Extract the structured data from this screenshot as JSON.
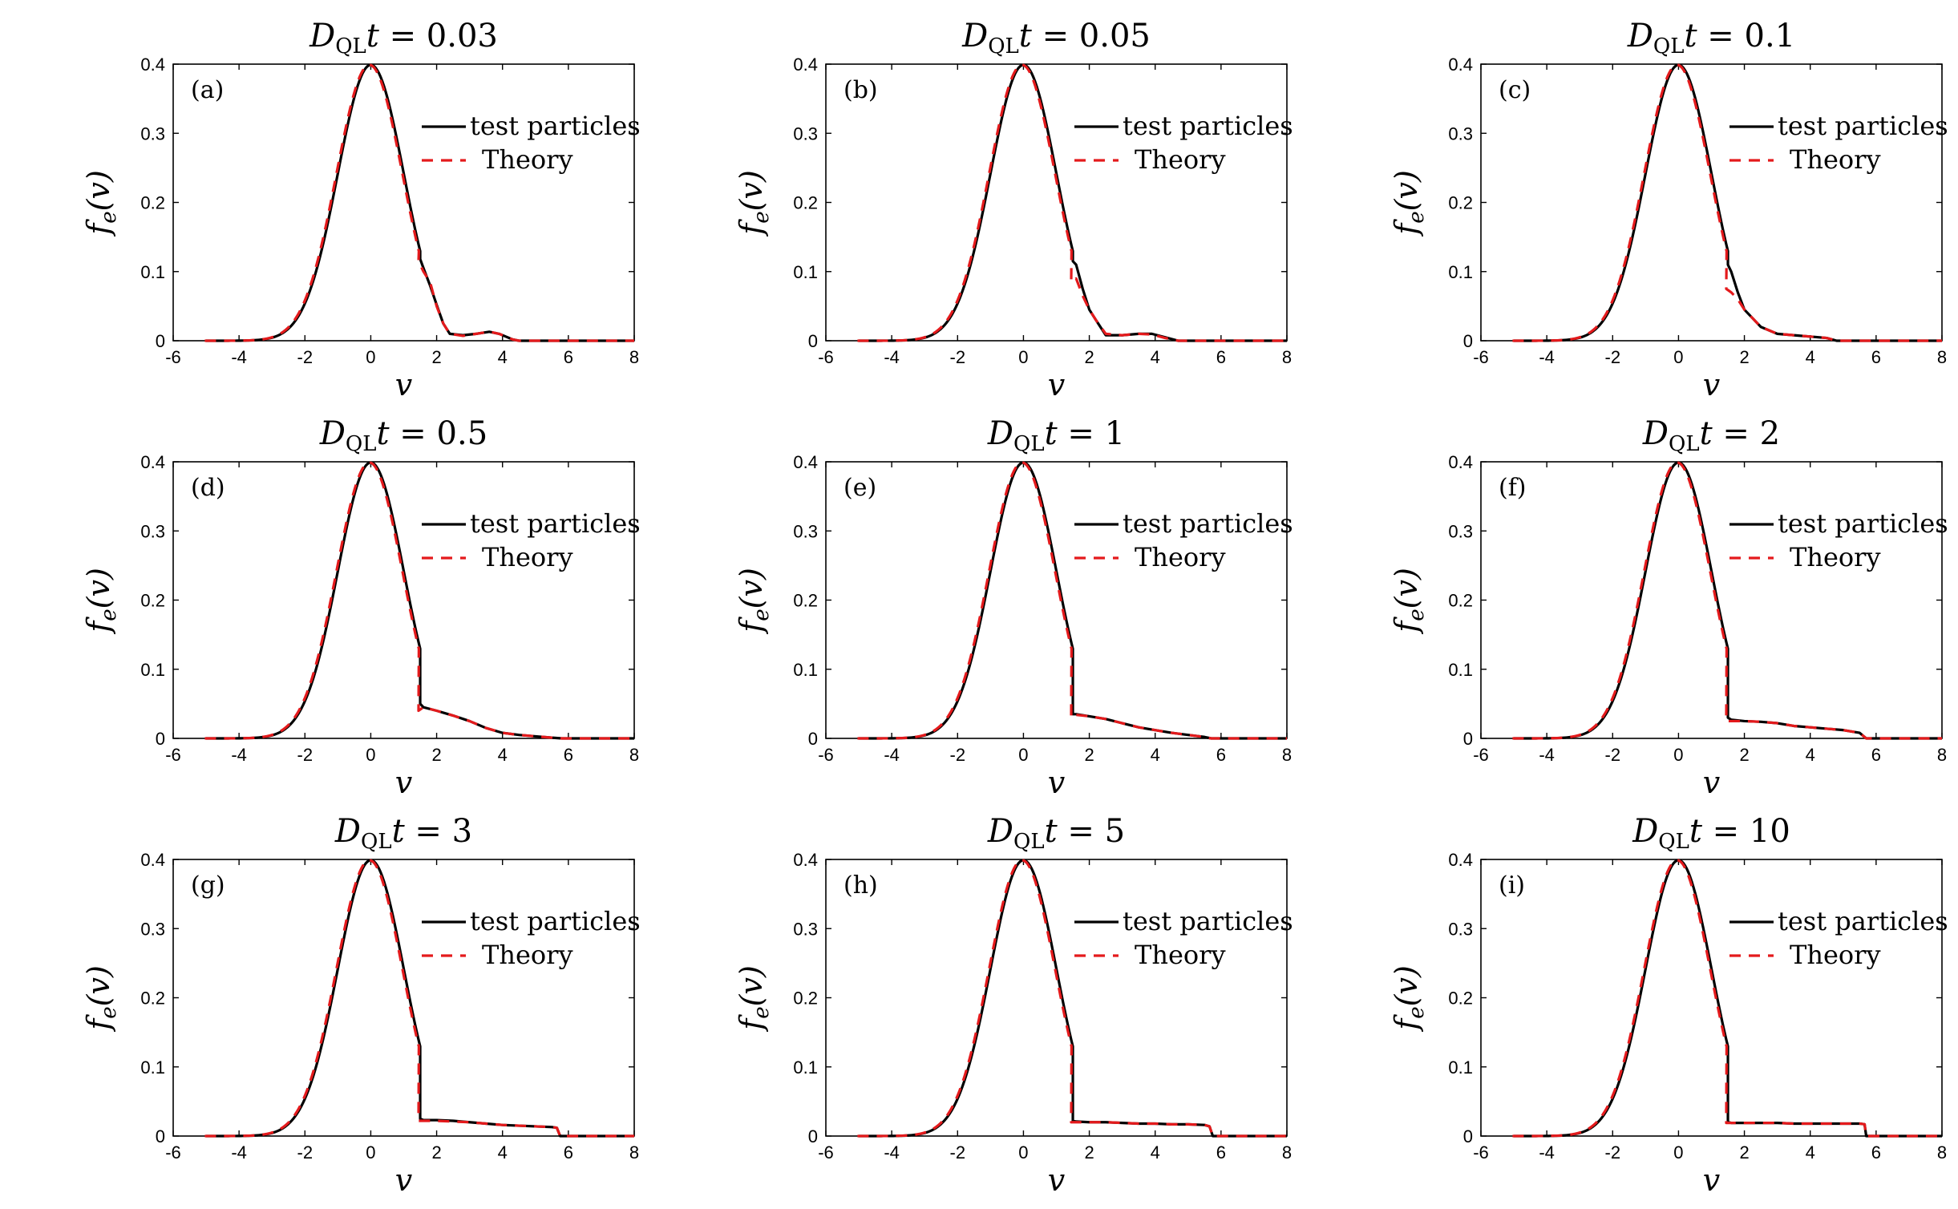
{
  "legend": {
    "test": "test particles",
    "theory": "Theory"
  },
  "colors": {
    "test": "#000000",
    "theory": "#e41a1c"
  },
  "xlabel": "v",
  "ylabel": {
    "base": "f",
    "sub": "e",
    "arg": "(v)"
  },
  "title_prefix": {
    "base": "D",
    "sub": "QL",
    "var": "t",
    "eq": " = "
  },
  "chart_data": [
    {
      "type": "line",
      "panel": "(a)",
      "time": "0.03",
      "xlim": [
        -6,
        8
      ],
      "ylim": [
        0,
        0.4
      ],
      "xticks": [
        -6,
        -4,
        -2,
        0,
        2,
        4,
        6,
        8
      ],
      "yticks": [
        0,
        0.1,
        0.2,
        0.3,
        0.4
      ],
      "legend_position": "upper-right",
      "series": [
        {
          "name": "test particles",
          "x": [
            1.5,
            1.6,
            1.8,
            2.0,
            2.2,
            2.4,
            2.8,
            3.2,
            3.6,
            3.9,
            4.1,
            4.3,
            4.5
          ],
          "y": [
            0.118,
            0.105,
            0.08,
            0.052,
            0.025,
            0.01,
            0.008,
            0.01,
            0.013,
            0.01,
            0.006,
            0.002,
            0.0
          ]
        },
        {
          "name": "Theory",
          "x": [
            1.45,
            1.6,
            1.8,
            2.0,
            2.2,
            2.4,
            2.8,
            3.2,
            3.6,
            3.9,
            4.1,
            4.3,
            4.5
          ],
          "y": [
            0.115,
            0.1,
            0.085,
            0.05,
            0.025,
            0.01,
            0.007,
            0.01,
            0.013,
            0.01,
            0.006,
            0.002,
            0.0
          ]
        }
      ]
    },
    {
      "type": "line",
      "panel": "(b)",
      "time": "0.05",
      "xlim": [
        -6,
        8
      ],
      "ylim": [
        0,
        0.4
      ],
      "xticks": [
        -6,
        -4,
        -2,
        0,
        2,
        4,
        6,
        8
      ],
      "yticks": [
        0,
        0.1,
        0.2,
        0.3,
        0.4
      ],
      "legend_position": "upper-right",
      "series": [
        {
          "name": "test particles",
          "x": [
            1.5,
            1.6,
            1.8,
            2.0,
            2.2,
            2.5,
            3.0,
            3.5,
            3.9,
            4.3,
            4.7
          ],
          "y": [
            0.115,
            0.11,
            0.075,
            0.045,
            0.03,
            0.008,
            0.008,
            0.01,
            0.01,
            0.005,
            0.0
          ]
        },
        {
          "name": "Theory",
          "x": [
            1.45,
            1.6,
            1.8,
            2.0,
            2.2,
            2.5,
            3.0,
            3.5,
            3.9,
            4.3,
            4.7
          ],
          "y": [
            0.085,
            0.09,
            0.065,
            0.045,
            0.03,
            0.01,
            0.008,
            0.01,
            0.009,
            0.004,
            0.0
          ]
        }
      ]
    },
    {
      "type": "line",
      "panel": "(c)",
      "time": "0.1",
      "xlim": [
        -6,
        8
      ],
      "ylim": [
        0,
        0.4
      ],
      "xticks": [
        -6,
        -4,
        -2,
        0,
        2,
        4,
        6,
        8
      ],
      "yticks": [
        0,
        0.1,
        0.2,
        0.3,
        0.4
      ],
      "legend_position": "upper-right",
      "series": [
        {
          "name": "test particles",
          "x": [
            1.5,
            1.6,
            1.8,
            2.0,
            2.2,
            2.5,
            3.0,
            3.5,
            4.0,
            4.5,
            4.8
          ],
          "y": [
            0.11,
            0.1,
            0.07,
            0.045,
            0.035,
            0.02,
            0.01,
            0.008,
            0.006,
            0.004,
            0.0
          ]
        },
        {
          "name": "Theory",
          "x": [
            1.45,
            1.6,
            1.8,
            2.0,
            2.2,
            2.5,
            3.0,
            3.5,
            4.0,
            4.5,
            4.8
          ],
          "y": [
            0.075,
            0.07,
            0.06,
            0.045,
            0.035,
            0.02,
            0.01,
            0.008,
            0.006,
            0.004,
            0.0
          ]
        }
      ]
    },
    {
      "type": "line",
      "panel": "(d)",
      "time": "0.5",
      "xlim": [
        -6,
        8
      ],
      "ylim": [
        0,
        0.4
      ],
      "xticks": [
        -6,
        -4,
        -2,
        0,
        2,
        4,
        6,
        8
      ],
      "yticks": [
        0,
        0.1,
        0.2,
        0.3,
        0.4
      ],
      "legend_position": "upper-right",
      "series": [
        {
          "name": "test particles",
          "x": [
            1.5,
            1.6,
            2.0,
            2.5,
            3.0,
            3.5,
            4.0,
            4.5,
            5.0,
            5.5,
            5.8
          ],
          "y": [
            0.05,
            0.045,
            0.04,
            0.033,
            0.025,
            0.015,
            0.008,
            0.005,
            0.003,
            0.001,
            0.0
          ]
        },
        {
          "name": "Theory",
          "x": [
            1.45,
            1.6,
            2.0,
            2.5,
            3.0,
            3.5,
            4.0,
            4.5,
            5.0,
            5.5,
            5.8
          ],
          "y": [
            0.04,
            0.045,
            0.04,
            0.033,
            0.025,
            0.015,
            0.008,
            0.005,
            0.003,
            0.001,
            0.0
          ]
        }
      ]
    },
    {
      "type": "line",
      "panel": "(e)",
      "time": "1",
      "xlim": [
        -6,
        8
      ],
      "ylim": [
        0,
        0.4
      ],
      "xticks": [
        -6,
        -4,
        -2,
        0,
        2,
        4,
        6,
        8
      ],
      "yticks": [
        0,
        0.1,
        0.2,
        0.3,
        0.4
      ],
      "legend_position": "upper-right",
      "series": [
        {
          "name": "test particles",
          "x": [
            1.5,
            1.6,
            2.0,
            2.5,
            3.0,
            3.5,
            4.0,
            4.5,
            5.0,
            5.5,
            5.7
          ],
          "y": [
            0.035,
            0.035,
            0.032,
            0.028,
            0.022,
            0.016,
            0.012,
            0.008,
            0.005,
            0.002,
            0.0
          ]
        },
        {
          "name": "Theory",
          "x": [
            1.45,
            1.6,
            2.0,
            2.5,
            3.0,
            3.5,
            4.0,
            4.5,
            5.0,
            5.5,
            5.7
          ],
          "y": [
            0.03,
            0.034,
            0.032,
            0.028,
            0.022,
            0.016,
            0.012,
            0.008,
            0.005,
            0.002,
            0.0
          ]
        }
      ]
    },
    {
      "type": "line",
      "panel": "(f)",
      "time": "2",
      "xlim": [
        -6,
        8
      ],
      "ylim": [
        0,
        0.4
      ],
      "xticks": [
        -6,
        -4,
        -2,
        0,
        2,
        4,
        6,
        8
      ],
      "yticks": [
        0,
        0.1,
        0.2,
        0.3,
        0.4
      ],
      "legend_position": "upper-right",
      "series": [
        {
          "name": "test particles",
          "x": [
            1.5,
            1.6,
            2.0,
            2.5,
            3.0,
            3.5,
            4.0,
            4.5,
            5.0,
            5.5,
            5.7
          ],
          "y": [
            0.03,
            0.027,
            0.025,
            0.024,
            0.022,
            0.018,
            0.016,
            0.014,
            0.012,
            0.008,
            0.0
          ]
        },
        {
          "name": "Theory",
          "x": [
            1.45,
            1.6,
            2.0,
            2.5,
            3.0,
            3.5,
            4.0,
            4.5,
            5.0,
            5.5,
            5.7
          ],
          "y": [
            0.025,
            0.025,
            0.025,
            0.024,
            0.022,
            0.018,
            0.016,
            0.014,
            0.012,
            0.008,
            0.0
          ]
        }
      ]
    },
    {
      "type": "line",
      "panel": "(g)",
      "time": "3",
      "xlim": [
        -6,
        8
      ],
      "ylim": [
        0,
        0.4
      ],
      "xticks": [
        -6,
        -4,
        -2,
        0,
        2,
        4,
        6,
        8
      ],
      "yticks": [
        0,
        0.1,
        0.2,
        0.3,
        0.4
      ],
      "legend_position": "upper-right",
      "series": [
        {
          "name": "test particles",
          "x": [
            1.5,
            1.6,
            2.0,
            2.5,
            3.0,
            3.5,
            4.0,
            4.5,
            5.0,
            5.5,
            5.65,
            5.75
          ],
          "y": [
            0.025,
            0.023,
            0.023,
            0.022,
            0.02,
            0.018,
            0.016,
            0.015,
            0.014,
            0.013,
            0.012,
            0.0
          ]
        },
        {
          "name": "Theory",
          "x": [
            1.45,
            1.6,
            2.0,
            2.5,
            3.0,
            3.5,
            4.0,
            4.5,
            5.0,
            5.5,
            5.65,
            5.75
          ],
          "y": [
            0.022,
            0.022,
            0.022,
            0.021,
            0.02,
            0.018,
            0.016,
            0.015,
            0.014,
            0.013,
            0.012,
            0.0
          ]
        }
      ]
    },
    {
      "type": "line",
      "panel": "(h)",
      "time": "5",
      "xlim": [
        -6,
        8
      ],
      "ylim": [
        0,
        0.4
      ],
      "xticks": [
        -6,
        -4,
        -2,
        0,
        2,
        4,
        6,
        8
      ],
      "yticks": [
        0,
        0.1,
        0.2,
        0.3,
        0.4
      ],
      "legend_position": "upper-right",
      "series": [
        {
          "name": "test particles",
          "x": [
            1.5,
            1.6,
            2.0,
            2.5,
            3.0,
            3.5,
            4.0,
            4.5,
            5.0,
            5.5,
            5.65,
            5.75
          ],
          "y": [
            0.022,
            0.021,
            0.02,
            0.02,
            0.019,
            0.018,
            0.018,
            0.017,
            0.017,
            0.016,
            0.014,
            0.0
          ]
        },
        {
          "name": "Theory",
          "x": [
            1.45,
            1.6,
            2.0,
            2.5,
            3.0,
            3.5,
            4.0,
            4.5,
            5.0,
            5.5,
            5.65,
            5.75
          ],
          "y": [
            0.02,
            0.02,
            0.02,
            0.02,
            0.019,
            0.018,
            0.018,
            0.017,
            0.017,
            0.016,
            0.014,
            0.0
          ]
        }
      ]
    },
    {
      "type": "line",
      "panel": "(i)",
      "time": "10",
      "xlim": [
        -6,
        8
      ],
      "ylim": [
        0,
        0.4
      ],
      "xticks": [
        -6,
        -4,
        -2,
        0,
        2,
        4,
        6,
        8
      ],
      "yticks": [
        0,
        0.1,
        0.2,
        0.3,
        0.4
      ],
      "legend_position": "upper-right",
      "series": [
        {
          "name": "test particles",
          "x": [
            1.5,
            1.6,
            2.0,
            2.5,
            3.0,
            3.5,
            4.0,
            4.5,
            5.0,
            5.5,
            5.65,
            5.7
          ],
          "y": [
            0.02,
            0.019,
            0.019,
            0.019,
            0.019,
            0.018,
            0.018,
            0.018,
            0.018,
            0.018,
            0.017,
            0.0
          ]
        },
        {
          "name": "Theory",
          "x": [
            1.45,
            1.6,
            2.0,
            2.5,
            3.0,
            3.5,
            4.0,
            4.5,
            5.0,
            5.5,
            5.65,
            5.7
          ],
          "y": [
            0.019,
            0.019,
            0.019,
            0.019,
            0.019,
            0.018,
            0.018,
            0.018,
            0.018,
            0.018,
            0.017,
            0.0
          ]
        }
      ]
    }
  ]
}
